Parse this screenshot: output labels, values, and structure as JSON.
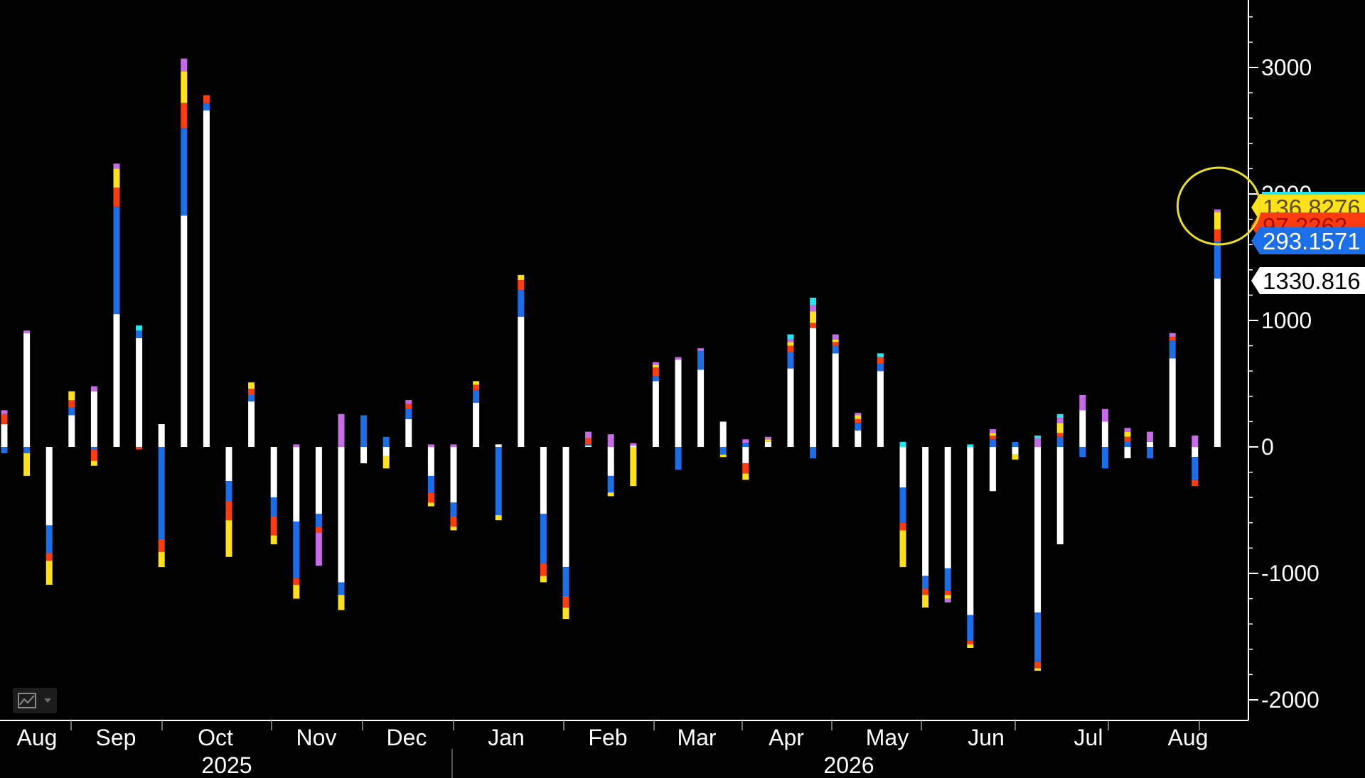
{
  "chart_data": {
    "type": "bar",
    "stacked": true,
    "y_ticks": [
      3000,
      2000,
      1000,
      0,
      -1000,
      -2000
    ],
    "y_tick_labels": [
      "3000",
      "2000",
      "1000",
      "0",
      "-1000",
      "-2000"
    ],
    "ylim": [
      -2200,
      3500
    ],
    "x_month_labels": [
      "Aug",
      "Sep",
      "Oct",
      "Nov",
      "Dec",
      "Jan",
      "Feb",
      "Mar",
      "Apr",
      "May",
      "Jun",
      "Jul",
      "Aug"
    ],
    "x_year_labels": [
      "2025",
      "2026"
    ],
    "series_colors": [
      "#ffffff",
      "#1a6ee8",
      "#ff3b10",
      "#ffe11a",
      "#c76be8",
      "#20e8f0"
    ],
    "bars": [
      [
        180,
        -50,
        80,
        0,
        30,
        0
      ],
      [
        900,
        -50,
        0,
        -180,
        20,
        0
      ],
      [
        -620,
        -220,
        -60,
        -190,
        0,
        0
      ],
      [
        250,
        60,
        60,
        70,
        0,
        0
      ],
      [
        440,
        -20,
        -90,
        -40,
        40,
        0
      ],
      [
        1050,
        850,
        150,
        150,
        40,
        0
      ],
      [
        860,
        60,
        -20,
        0,
        0,
        40
      ],
      [
        180,
        -730,
        -100,
        -120,
        0,
        0
      ],
      [
        1830,
        690,
        200,
        250,
        100,
        0
      ],
      [
        2660,
        60,
        60,
        0,
        0,
        0
      ],
      [
        -270,
        -160,
        -150,
        -290,
        0,
        0
      ],
      [
        360,
        50,
        50,
        50,
        0,
        0
      ],
      [
        -400,
        -150,
        -150,
        -70,
        0,
        0
      ],
      [
        -590,
        -450,
        -50,
        -110,
        20,
        0
      ],
      [
        -530,
        -100,
        -50,
        0,
        -260,
        0
      ],
      [
        -1070,
        -100,
        0,
        -120,
        260,
        0
      ],
      [
        -130,
        250,
        0,
        0,
        0,
        0
      ],
      [
        -70,
        80,
        0,
        -100,
        0,
        0
      ],
      [
        220,
        80,
        40,
        0,
        30,
        0
      ],
      [
        -230,
        -130,
        -80,
        -30,
        20,
        0
      ],
      [
        -440,
        -110,
        -80,
        -30,
        20,
        0
      ],
      [
        350,
        100,
        40,
        30,
        0,
        0
      ],
      [
        20,
        -540,
        0,
        -40,
        0,
        0
      ],
      [
        1030,
        210,
        80,
        40,
        0,
        0
      ],
      [
        -530,
        -390,
        -100,
        -50,
        0,
        0
      ],
      [
        -950,
        -230,
        -90,
        -90,
        0,
        0
      ],
      [
        10,
        10,
        50,
        0,
        50,
        0
      ],
      [
        -230,
        -130,
        0,
        -30,
        100,
        0
      ],
      [
        10,
        0,
        0,
        -310,
        20,
        0
      ],
      [
        520,
        40,
        70,
        20,
        20,
        0
      ],
      [
        690,
        -180,
        0,
        0,
        20,
        0
      ],
      [
        610,
        150,
        0,
        0,
        20,
        0
      ],
      [
        200,
        -60,
        0,
        -20,
        0,
        0
      ],
      [
        -130,
        30,
        -80,
        -50,
        30,
        0
      ],
      [
        40,
        0,
        0,
        20,
        20,
        0
      ],
      [
        620,
        130,
        50,
        30,
        20,
        40
      ],
      [
        940,
        -90,
        40,
        90,
        50,
        60
      ],
      [
        740,
        60,
        30,
        20,
        40,
        0
      ],
      [
        130,
        60,
        30,
        30,
        20,
        0
      ],
      [
        600,
        60,
        50,
        0,
        0,
        30
      ],
      [
        -320,
        -280,
        -60,
        -290,
        0,
        40
      ],
      [
        -1020,
        -100,
        -50,
        -100,
        0,
        0
      ],
      [
        -960,
        -180,
        -30,
        -30,
        -30,
        0
      ],
      [
        -1330,
        -200,
        -30,
        -30,
        0,
        20
      ],
      [
        -350,
        60,
        30,
        20,
        30,
        0
      ],
      [
        -60,
        40,
        0,
        -40,
        0,
        0
      ],
      [
        -1310,
        -390,
        -50,
        -20,
        70,
        20
      ],
      [
        -770,
        80,
        30,
        80,
        40,
        30
      ],
      [
        290,
        -80,
        0,
        0,
        120,
        0
      ],
      [
        200,
        -170,
        0,
        0,
        100,
        0
      ],
      [
        -90,
        40,
        40,
        40,
        30,
        0
      ],
      [
        40,
        -90,
        0,
        0,
        80,
        0
      ],
      [
        700,
        140,
        30,
        0,
        30,
        0
      ],
      [
        -80,
        -180,
        -50,
        0,
        90,
        0
      ],
      [
        1330.816,
        293.1571,
        97.2262,
        136.8276,
        20,
        0
      ]
    ],
    "last_values": [
      {
        "series": 0,
        "label": "1330.816"
      },
      {
        "series": 1,
        "label": "293.1571"
      },
      {
        "series": 2,
        "label": "97.2262"
      },
      {
        "series": 3,
        "label": "136.8276"
      }
    ],
    "highlight": "circle around last bar"
  }
}
